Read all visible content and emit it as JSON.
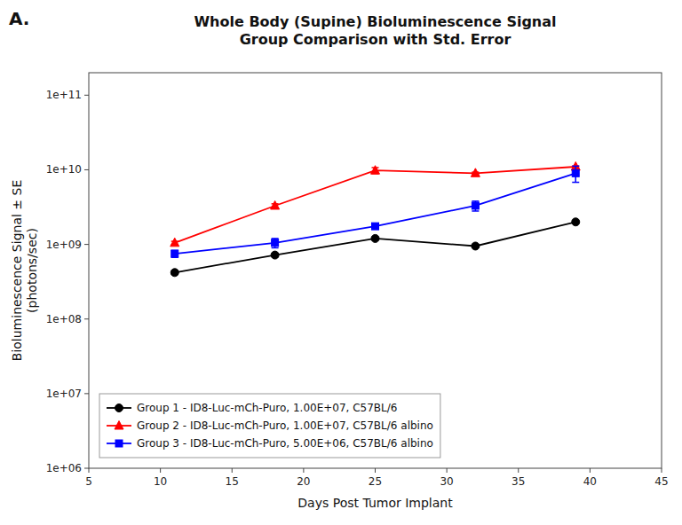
{
  "chart_data": {
    "type": "line",
    "title": "Whole Body (Supine) Bioluminescence Signal\nGroup Comparison with Std. Error",
    "x_label": "Days Post Tumor Implant",
    "y_label": "Bioluminescence Signal ± SE\n(photons/sec)",
    "annotations": [
      "A."
    ],
    "log": "y",
    "grid": false,
    "legend": "lower left",
    "xlim": [
      5,
      45
    ],
    "xticks": [
      5,
      10,
      15,
      20,
      25,
      30,
      35,
      40,
      45
    ],
    "ylim": [
      1000000.0,
      200000000000.0
    ],
    "yticks": [
      {
        "value": 1000000.0,
        "label": "1e+06"
      },
      {
        "value": 10000000.0,
        "label": "1e+07"
      },
      {
        "value": 100000000.0,
        "label": "1e+08"
      },
      {
        "value": 1000000000.0,
        "label": "1e+09"
      },
      {
        "value": 10000000000.0,
        "label": "1e+10"
      },
      {
        "value": 100000000000.0,
        "label": "1e+11"
      }
    ],
    "x": [
      11,
      18,
      25,
      32,
      39
    ],
    "series": [
      {
        "name": "Group 1 - ID8-Luc-mCh-Puro, 1.00E+07, C57BL/6",
        "color": "#000000",
        "marker": "circle",
        "values": [
          420000000.0,
          720000000.0,
          1200000000.0,
          950000000.0,
          2000000000.0
        ],
        "yerr_low": [
          25000000.0,
          40000000.0,
          50000000.0,
          40000000.0,
          70000000.0
        ],
        "yerr_high": [
          25000000.0,
          40000000.0,
          50000000.0,
          40000000.0,
          70000000.0
        ]
      },
      {
        "name": "Group 2 - ID8-Luc-mCh-Puro, 1.00E+07, C57BL/6 albino",
        "color": "#ff0000",
        "marker": "triangle",
        "values": [
          1050000000.0,
          3300000000.0,
          9800000000.0,
          9000000000.0,
          11000000000.0
        ],
        "yerr_low": [
          50000000.0,
          200000000.0,
          900000000.0,
          300000000.0,
          250000000.0
        ],
        "yerr_high": [
          50000000.0,
          200000000.0,
          900000000.0,
          300000000.0,
          250000000.0
        ]
      },
      {
        "name": "Group 3 - ID8-Luc-mCh-Puro, 5.00E+06, C57BL/6 albino",
        "color": "#0000ff",
        "marker": "square",
        "values": [
          750000000.0,
          1050000000.0,
          1750000000.0,
          3300000000.0,
          9000000000.0
        ],
        "yerr_low": [
          80000000.0,
          150000000.0,
          120000000.0,
          500000000.0,
          2200000000.0
        ],
        "yerr_high": [
          80000000.0,
          150000000.0,
          120000000.0,
          500000000.0,
          2200000000.0
        ]
      }
    ]
  }
}
